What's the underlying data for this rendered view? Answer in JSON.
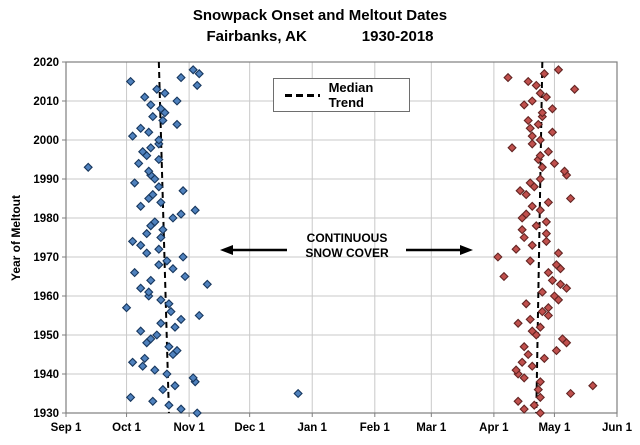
{
  "title": "Snowpack Onset and Meltout Dates",
  "subtitle_left": "Fairbanks, AK",
  "subtitle_right": "1930-2018",
  "legend": {
    "label": "Median Trend"
  },
  "annotation": {
    "line1": "CONTINUOUS",
    "line2": "SNOW COVER"
  },
  "colors": {
    "onset_fill": "#4f81bd",
    "onset_stroke": "#17375e",
    "meltout_fill": "#c0504d",
    "meltout_stroke": "#632523",
    "gridline": "#c9c9c9",
    "axis": "#7f7f7f",
    "trend": "#000000"
  },
  "chart_data": {
    "type": "scatter",
    "title": "Snowpack Onset and Meltout Dates  Fairbanks, AK  1930-2018",
    "xlabel": "",
    "ylabel": "Year of Meltout",
    "x_ticks": [
      "Sep 1",
      "Oct 1",
      "Nov 1",
      "Dec 1",
      "Jan 1",
      "Feb 1",
      "Mar 1",
      "Apr 1",
      "May 1",
      "Jun 1"
    ],
    "ylim": [
      1930,
      2020
    ],
    "y_tick_step": 10,
    "grid": true,
    "legend_position": "top-center",
    "series": [
      {
        "name": "Snowpack Onset",
        "marker": "diamond",
        "fill": "#4f81bd",
        "stroke": "#17375e",
        "points": [
          [
            1930,
            "Nov 5"
          ],
          [
            1931,
            "Oct 28"
          ],
          [
            1932,
            "Oct 22"
          ],
          [
            1933,
            "Oct 14"
          ],
          [
            1934,
            "Oct 3"
          ],
          [
            1935,
            "Dec 25"
          ],
          [
            1936,
            "Oct 19"
          ],
          [
            1937,
            "Oct 25"
          ],
          [
            1938,
            "Nov 4"
          ],
          [
            1939,
            "Nov 3"
          ],
          [
            1940,
            "Oct 21"
          ],
          [
            1941,
            "Oct 15"
          ],
          [
            1942,
            "Oct 9"
          ],
          [
            1943,
            "Oct 4"
          ],
          [
            1944,
            "Oct 10"
          ],
          [
            1945,
            "Oct 24"
          ],
          [
            1946,
            "Oct 26"
          ],
          [
            1947,
            "Oct 22"
          ],
          [
            1948,
            "Oct 11"
          ],
          [
            1949,
            "Oct 13"
          ],
          [
            1950,
            "Oct 16"
          ],
          [
            1951,
            "Oct 8"
          ],
          [
            1952,
            "Oct 25"
          ],
          [
            1953,
            "Oct 18"
          ],
          [
            1954,
            "Oct 28"
          ],
          [
            1955,
            "Nov 6"
          ],
          [
            1956,
            "Oct 23"
          ],
          [
            1957,
            "Oct 1"
          ],
          [
            1958,
            "Oct 22"
          ],
          [
            1959,
            "Oct 18"
          ],
          [
            1960,
            "Oct 12"
          ],
          [
            1961,
            "Oct 12"
          ],
          [
            1962,
            "Oct 8"
          ],
          [
            1963,
            "Nov 10"
          ],
          [
            1964,
            "Oct 13"
          ],
          [
            1965,
            "Oct 30"
          ],
          [
            1966,
            "Oct 5"
          ],
          [
            1967,
            "Oct 24"
          ],
          [
            1968,
            "Oct 17"
          ],
          [
            1969,
            "Oct 21"
          ],
          [
            1970,
            "Oct 29"
          ],
          [
            1971,
            "Oct 11"
          ],
          [
            1972,
            "Oct 17"
          ],
          [
            1973,
            "Oct 8"
          ],
          [
            1974,
            "Oct 4"
          ],
          [
            1975,
            "Oct 18"
          ],
          [
            1976,
            "Oct 11"
          ],
          [
            1977,
            "Oct 19"
          ],
          [
            1978,
            "Oct 13"
          ],
          [
            1979,
            "Oct 15"
          ],
          [
            1980,
            "Oct 24"
          ],
          [
            1981,
            "Oct 28"
          ],
          [
            1982,
            "Nov 4"
          ],
          [
            1983,
            "Oct 8"
          ],
          [
            1984,
            "Oct 18"
          ],
          [
            1985,
            "Oct 12"
          ],
          [
            1986,
            "Oct 14"
          ],
          [
            1987,
            "Oct 29"
          ],
          [
            1988,
            "Oct 17"
          ],
          [
            1989,
            "Oct 5"
          ],
          [
            1990,
            "Oct 15"
          ],
          [
            1991,
            "Oct 13"
          ],
          [
            1992,
            "Oct 12"
          ],
          [
            1993,
            "Sep 12"
          ],
          [
            1994,
            "Oct 7"
          ],
          [
            1995,
            "Oct 17"
          ],
          [
            1996,
            "Oct 11"
          ],
          [
            1997,
            "Oct 9"
          ],
          [
            1998,
            "Oct 13"
          ],
          [
            1999,
            "Oct 17"
          ],
          [
            2000,
            "Oct 17"
          ],
          [
            2001,
            "Oct 4"
          ],
          [
            2002,
            "Oct 12"
          ],
          [
            2003,
            "Oct 8"
          ],
          [
            2004,
            "Oct 26"
          ],
          [
            2005,
            "Oct 19"
          ],
          [
            2006,
            "Oct 14"
          ],
          [
            2007,
            "Oct 20"
          ],
          [
            2008,
            "Oct 18"
          ],
          [
            2009,
            "Oct 13"
          ],
          [
            2010,
            "Oct 26"
          ],
          [
            2011,
            "Oct 10"
          ],
          [
            2012,
            "Oct 20"
          ],
          [
            2013,
            "Oct 16"
          ],
          [
            2014,
            "Nov 5"
          ],
          [
            2015,
            "Oct 3"
          ],
          [
            2016,
            "Oct 28"
          ],
          [
            2017,
            "Nov 6"
          ],
          [
            2018,
            "Nov 3"
          ]
        ]
      },
      {
        "name": "Meltout",
        "marker": "diamond",
        "fill": "#c0504d",
        "stroke": "#632523",
        "points": [
          [
            1930,
            "Apr 24"
          ],
          [
            1931,
            "Apr 16"
          ],
          [
            1932,
            "Apr 21"
          ],
          [
            1933,
            "Apr 13"
          ],
          [
            1934,
            "Apr 24"
          ],
          [
            1935,
            "May 9"
          ],
          [
            1936,
            "Apr 23"
          ],
          [
            1937,
            "May 20"
          ],
          [
            1938,
            "Apr 24"
          ],
          [
            1939,
            "Apr 16"
          ],
          [
            1940,
            "Apr 13"
          ],
          [
            1941,
            "Apr 12"
          ],
          [
            1942,
            "Apr 20"
          ],
          [
            1943,
            "Apr 15"
          ],
          [
            1944,
            "Apr 26"
          ],
          [
            1945,
            "Apr 18"
          ],
          [
            1946,
            "May 2"
          ],
          [
            1947,
            "Apr 16"
          ],
          [
            1948,
            "May 7"
          ],
          [
            1949,
            "May 5"
          ],
          [
            1950,
            "Apr 22"
          ],
          [
            1951,
            "Apr 20"
          ],
          [
            1952,
            "Apr 24"
          ],
          [
            1953,
            "Apr 13"
          ],
          [
            1954,
            "Apr 19"
          ],
          [
            1955,
            "Apr 28"
          ],
          [
            1956,
            "Apr 25"
          ],
          [
            1957,
            "Apr 28"
          ],
          [
            1958,
            "Apr 17"
          ],
          [
            1959,
            "May 3"
          ],
          [
            1960,
            "May 1"
          ],
          [
            1961,
            "Apr 25"
          ],
          [
            1962,
            "May 7"
          ],
          [
            1963,
            "May 4"
          ],
          [
            1964,
            "Apr 30"
          ],
          [
            1965,
            "Apr 6"
          ],
          [
            1966,
            "Apr 28"
          ],
          [
            1967,
            "May 4"
          ],
          [
            1968,
            "May 2"
          ],
          [
            1969,
            "Apr 19"
          ],
          [
            1970,
            "Apr 3"
          ],
          [
            1971,
            "May 3"
          ],
          [
            1972,
            "Apr 12"
          ],
          [
            1973,
            "Apr 20"
          ],
          [
            1974,
            "Apr 27"
          ],
          [
            1975,
            "Apr 16"
          ],
          [
            1976,
            "Apr 27"
          ],
          [
            1977,
            "Apr 15"
          ],
          [
            1978,
            "Apr 22"
          ],
          [
            1979,
            "Apr 27"
          ],
          [
            1980,
            "Apr 15"
          ],
          [
            1981,
            "Apr 17"
          ],
          [
            1982,
            "Apr 24"
          ],
          [
            1983,
            "Apr 20"
          ],
          [
            1984,
            "Apr 28"
          ],
          [
            1985,
            "May 9"
          ],
          [
            1986,
            "Apr 17"
          ],
          [
            1987,
            "Apr 14"
          ],
          [
            1988,
            "Apr 21"
          ],
          [
            1989,
            "Apr 19"
          ],
          [
            1990,
            "Apr 24"
          ],
          [
            1991,
            "May 7"
          ],
          [
            1992,
            "May 6"
          ],
          [
            1993,
            "Apr 25"
          ],
          [
            1994,
            "May 1"
          ],
          [
            1995,
            "Apr 23"
          ],
          [
            1996,
            "Apr 24"
          ],
          [
            1997,
            "Apr 28"
          ],
          [
            1998,
            "Apr 10"
          ],
          [
            1999,
            "Apr 20"
          ],
          [
            2000,
            "Apr 24"
          ],
          [
            2001,
            "Apr 20"
          ],
          [
            2002,
            "Apr 30"
          ],
          [
            2003,
            "Apr 19"
          ],
          [
            2004,
            "Apr 23"
          ],
          [
            2005,
            "Apr 18"
          ],
          [
            2006,
            "Apr 25"
          ],
          [
            2007,
            "Apr 25"
          ],
          [
            2008,
            "Apr 30"
          ],
          [
            2009,
            "Apr 16"
          ],
          [
            2010,
            "Apr 20"
          ],
          [
            2011,
            "Apr 27"
          ],
          [
            2012,
            "Apr 24"
          ],
          [
            2013,
            "May 11"
          ],
          [
            2014,
            "Apr 22"
          ],
          [
            2015,
            "Apr 18"
          ],
          [
            2016,
            "Apr 8"
          ],
          [
            2017,
            "Apr 26"
          ],
          [
            2018,
            "May 3"
          ]
        ]
      }
    ],
    "trend_lines": [
      {
        "name": "Median Trend (onset)",
        "style": "dashed",
        "date_at_2020": "Oct 17",
        "date_at_1930": "Oct 22"
      },
      {
        "name": "Median Trend (meltout)",
        "style": "dashed",
        "date_at_2020": "Apr 25",
        "date_at_1930": "Apr 22"
      }
    ]
  }
}
